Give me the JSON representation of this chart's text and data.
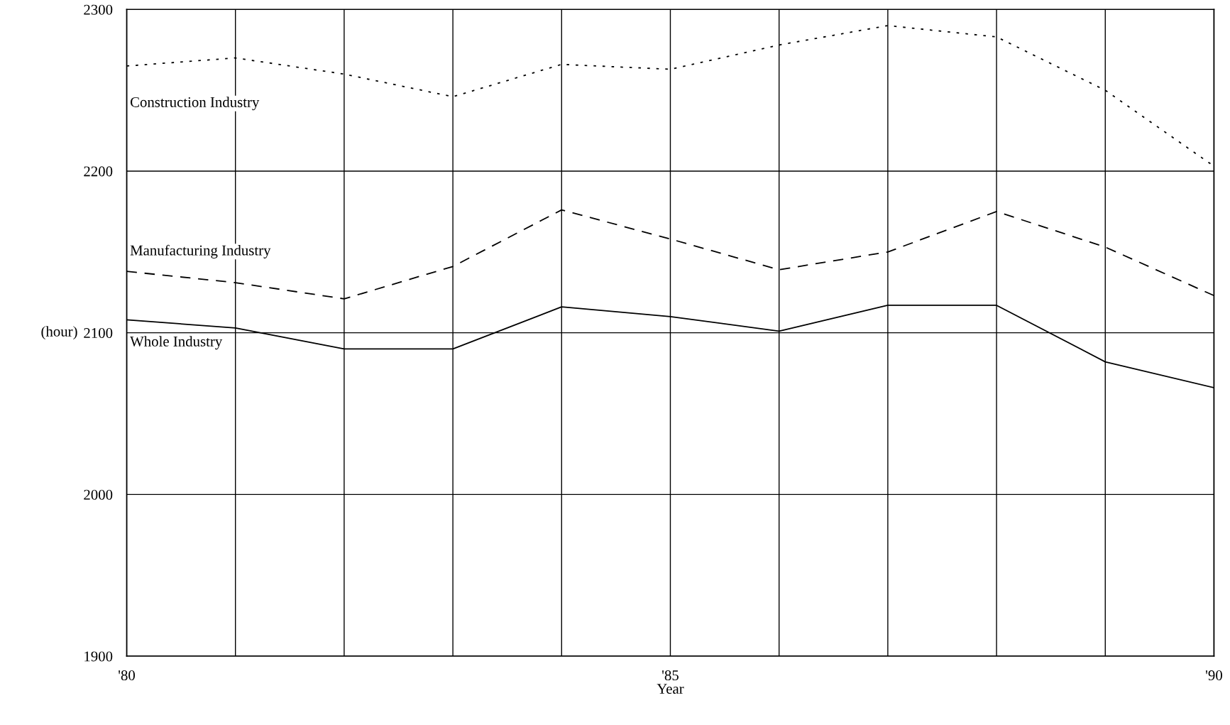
{
  "chart_data": {
    "type": "line",
    "xlabel": "Year",
    "ylabel": "(hour)",
    "x": [
      1980,
      1981,
      1982,
      1983,
      1984,
      1985,
      1986,
      1987,
      1988,
      1989,
      1990
    ],
    "series": [
      {
        "name": "Construction Industry",
        "color": "#000000",
        "line_style": "dotted",
        "values": [
          2265,
          2270,
          2260,
          2246,
          2266,
          2263,
          2278,
          2290,
          2283,
          2250,
          2203
        ]
      },
      {
        "name": "Manufacturing Industry",
        "color": "#000000",
        "line_style": "dashed",
        "values": [
          2138,
          2131,
          2121,
          2141,
          2176,
          2158,
          2139,
          2150,
          2175,
          2153,
          2123
        ]
      },
      {
        "name": "Whole Industry",
        "color": "#000000",
        "line_style": "solid",
        "values": [
          2108,
          2103,
          2090,
          2090,
          2116,
          2110,
          2101,
          2117,
          2117,
          2082,
          2066
        ]
      }
    ],
    "xlim": [
      1980,
      1990
    ],
    "xticks": [
      {
        "value": 1980,
        "label": "'80"
      },
      {
        "value": 1981,
        "label": null
      },
      {
        "value": 1982,
        "label": null
      },
      {
        "value": 1983,
        "label": null
      },
      {
        "value": 1984,
        "label": null
      },
      {
        "value": 1985,
        "label": "'85"
      },
      {
        "value": 1986,
        "label": null
      },
      {
        "value": 1987,
        "label": null
      },
      {
        "value": 1988,
        "label": null
      },
      {
        "value": 1989,
        "label": null
      },
      {
        "value": 1990,
        "label": "'90"
      }
    ],
    "ylim": [
      1900,
      2300
    ],
    "yticks": [
      1900,
      2000,
      2100,
      2200,
      2300
    ],
    "grid": true,
    "legend": false,
    "marker": "none"
  }
}
